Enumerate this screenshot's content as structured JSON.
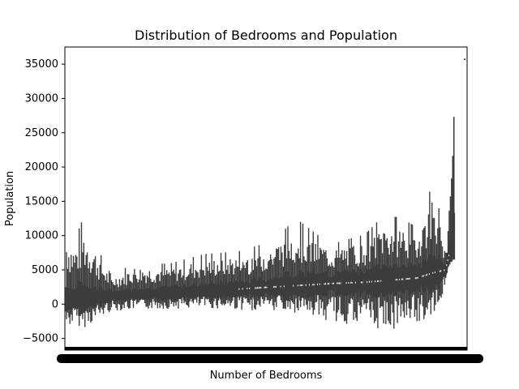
{
  "chart_data": {
    "type": "violin",
    "title": "Distribution of Bedrooms and Population",
    "xlabel": "Number of Bedrooms",
    "ylabel": "Population",
    "ylim": [
      -6700,
      37500
    ],
    "yticks": [
      -5000,
      0,
      5000,
      10000,
      15000,
      20000,
      25000,
      30000,
      35000
    ],
    "ytick_labels": [
      "−5000",
      "0",
      "5000",
      "10000",
      "15000",
      "20000",
      "25000",
      "30000",
      "35000"
    ],
    "grid": false,
    "legend": "none",
    "x_categories_count": 340,
    "series": [
      {
        "values_sampled": [
          {
            "x": 1,
            "min": -3500,
            "max": 11800,
            "median": 700
          },
          {
            "x": 8,
            "min": -2800,
            "max": 9200,
            "median": 800
          },
          {
            "x": 15,
            "min": -3600,
            "max": 12400,
            "median": 900
          },
          {
            "x": 40,
            "min": -1000,
            "max": 4200,
            "median": 1200
          },
          {
            "x": 60,
            "min": -800,
            "max": 6000,
            "median": 1400
          },
          {
            "x": 90,
            "min": -700,
            "max": 5900,
            "median": 1600
          },
          {
            "x": 120,
            "min": -600,
            "max": 7300,
            "median": 1900
          },
          {
            "x": 150,
            "min": -800,
            "max": 7700,
            "median": 2200
          },
          {
            "x": 180,
            "min": -1200,
            "max": 9200,
            "median": 2500
          },
          {
            "x": 200,
            "min": -1300,
            "max": 12500,
            "median": 2700
          },
          {
            "x": 230,
            "min": -2500,
            "max": 8700,
            "median": 3000
          },
          {
            "x": 260,
            "min": -3500,
            "max": 10200,
            "median": 3200
          },
          {
            "x": 275,
            "min": -4000,
            "max": 12800,
            "median": 3400
          },
          {
            "x": 290,
            "min": -3800,
            "max": 12700,
            "median": 3600
          },
          {
            "x": 305,
            "min": -3100,
            "max": 11200,
            "median": 3800
          },
          {
            "x": 320,
            "min": -1500,
            "max": 18300,
            "median": 4600
          },
          {
            "x": 330,
            "min": 2500,
            "max": 7500,
            "median": 5000
          },
          {
            "x": 340,
            "min": 9500,
            "max": 35800,
            "median": 12000
          }
        ]
      }
    ],
    "colors": {
      "violin": "#3d3d3d",
      "median": "#ffffff"
    }
  }
}
